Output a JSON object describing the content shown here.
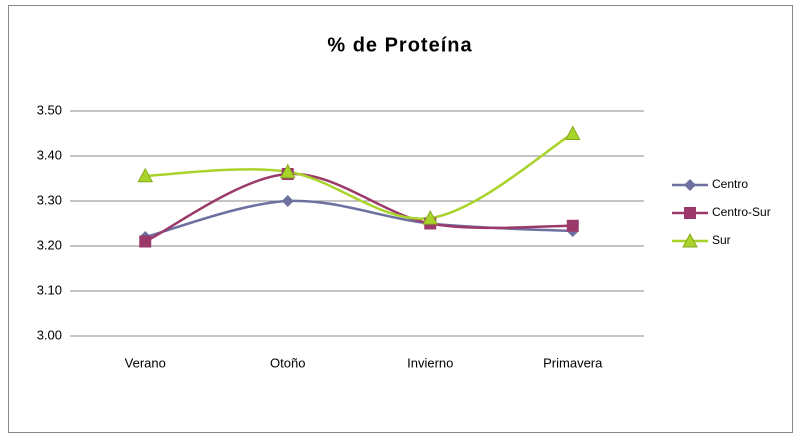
{
  "chart_data": {
    "type": "line",
    "title": "% de Proteína",
    "categories": [
      "Verano",
      "Otoño",
      "Invierno",
      "Primavera"
    ],
    "series": [
      {
        "name": "Centro",
        "color": "#6E71A0",
        "marker": "diamond",
        "values": [
          3.22,
          3.3,
          3.25,
          3.233
        ]
      },
      {
        "name": "Centro-Sur",
        "color": "#9B3A6A",
        "marker": "square",
        "values": [
          3.21,
          3.36,
          3.25,
          3.245
        ]
      },
      {
        "name": "Sur",
        "color": "#A8D42A",
        "marker": "triangle",
        "values": [
          3.356,
          3.365,
          3.262,
          3.45
        ]
      }
    ],
    "ylim": [
      3.0,
      3.5
    ],
    "yticks": [
      {
        "value": 3.0,
        "label": "3.00"
      },
      {
        "value": 3.1,
        "label": "3.10"
      },
      {
        "value": 3.2,
        "label": "3.20"
      },
      {
        "value": 3.3,
        "label": "3.30"
      },
      {
        "value": 3.4,
        "label": "3.40"
      },
      {
        "value": 3.5,
        "label": "3.50"
      }
    ],
    "grid": true,
    "smooth": true,
    "legend": "right"
  }
}
